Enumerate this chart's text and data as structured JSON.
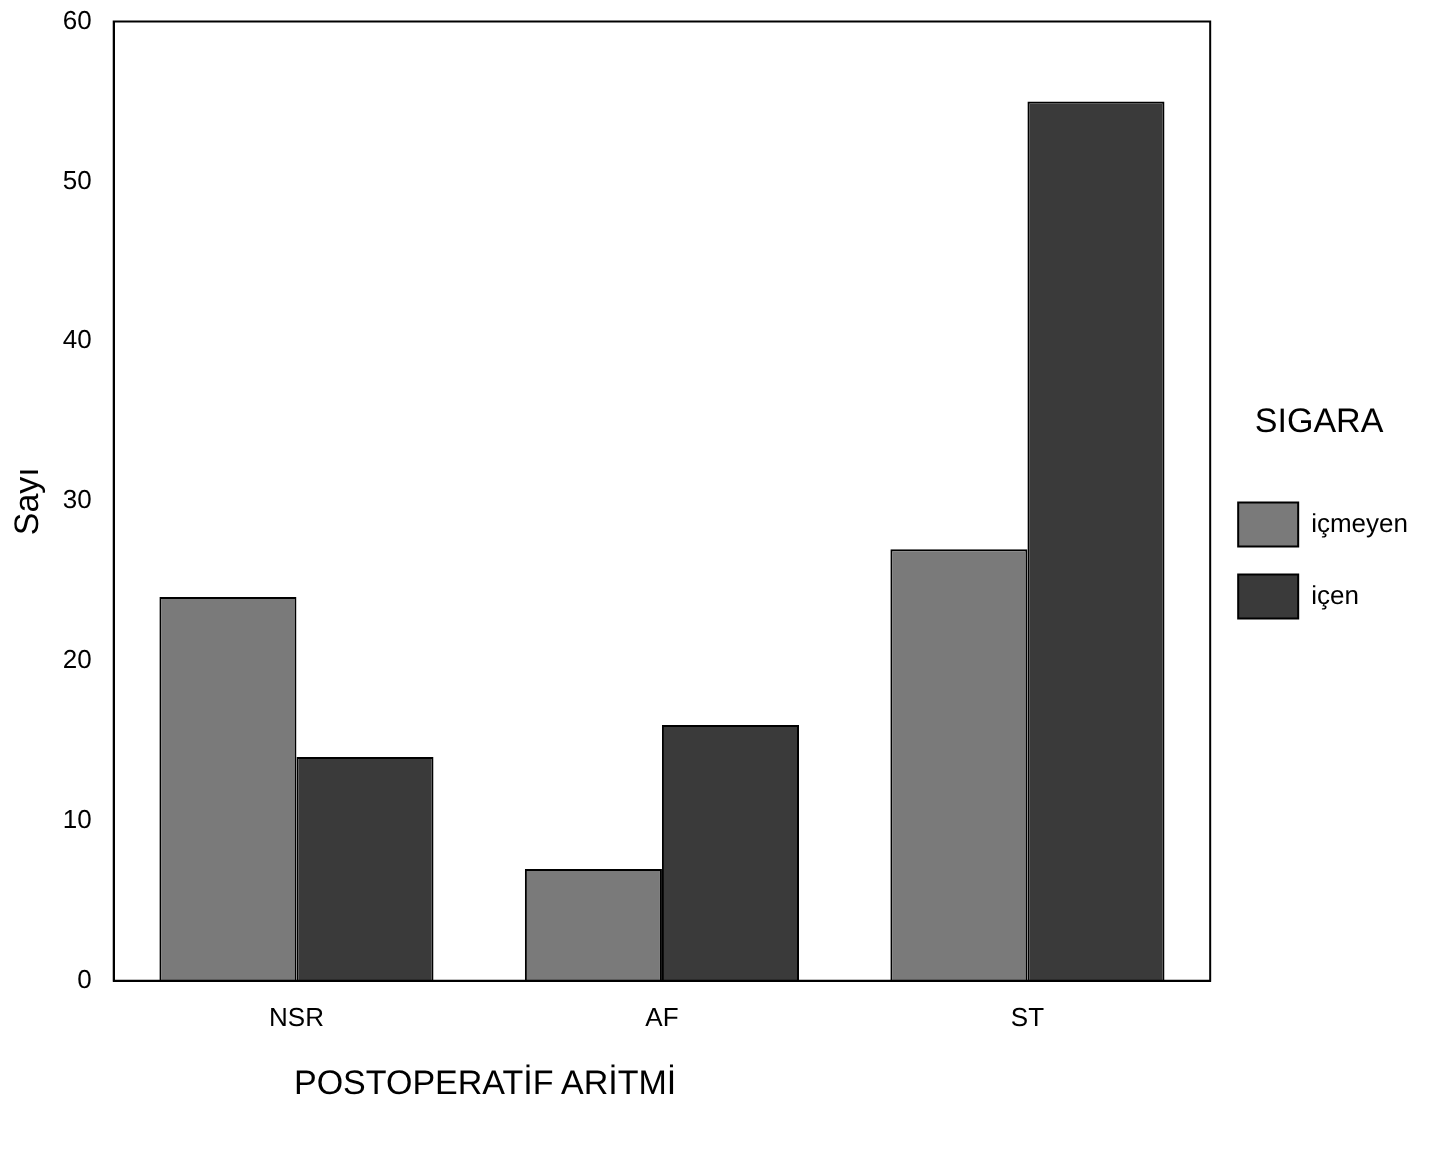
{
  "chart_data": {
    "type": "bar",
    "categories": [
      "NSR",
      "AF",
      "ST"
    ],
    "series": [
      {
        "name": "içmeyen",
        "color": "#7a7a7a",
        "values": [
          24,
          7,
          27
        ]
      },
      {
        "name": "içen",
        "color": "#3a3a3a",
        "values": [
          14,
          16,
          55
        ]
      }
    ],
    "ylim": [
      0,
      60
    ],
    "yticks": [
      0,
      10,
      20,
      30,
      40,
      50,
      60
    ],
    "grid": false,
    "legend": "right",
    "legend_title": "SIGARA",
    "xlabel": "POSTOPERATİF ARİTMİ",
    "ylabel": "Sayı"
  }
}
